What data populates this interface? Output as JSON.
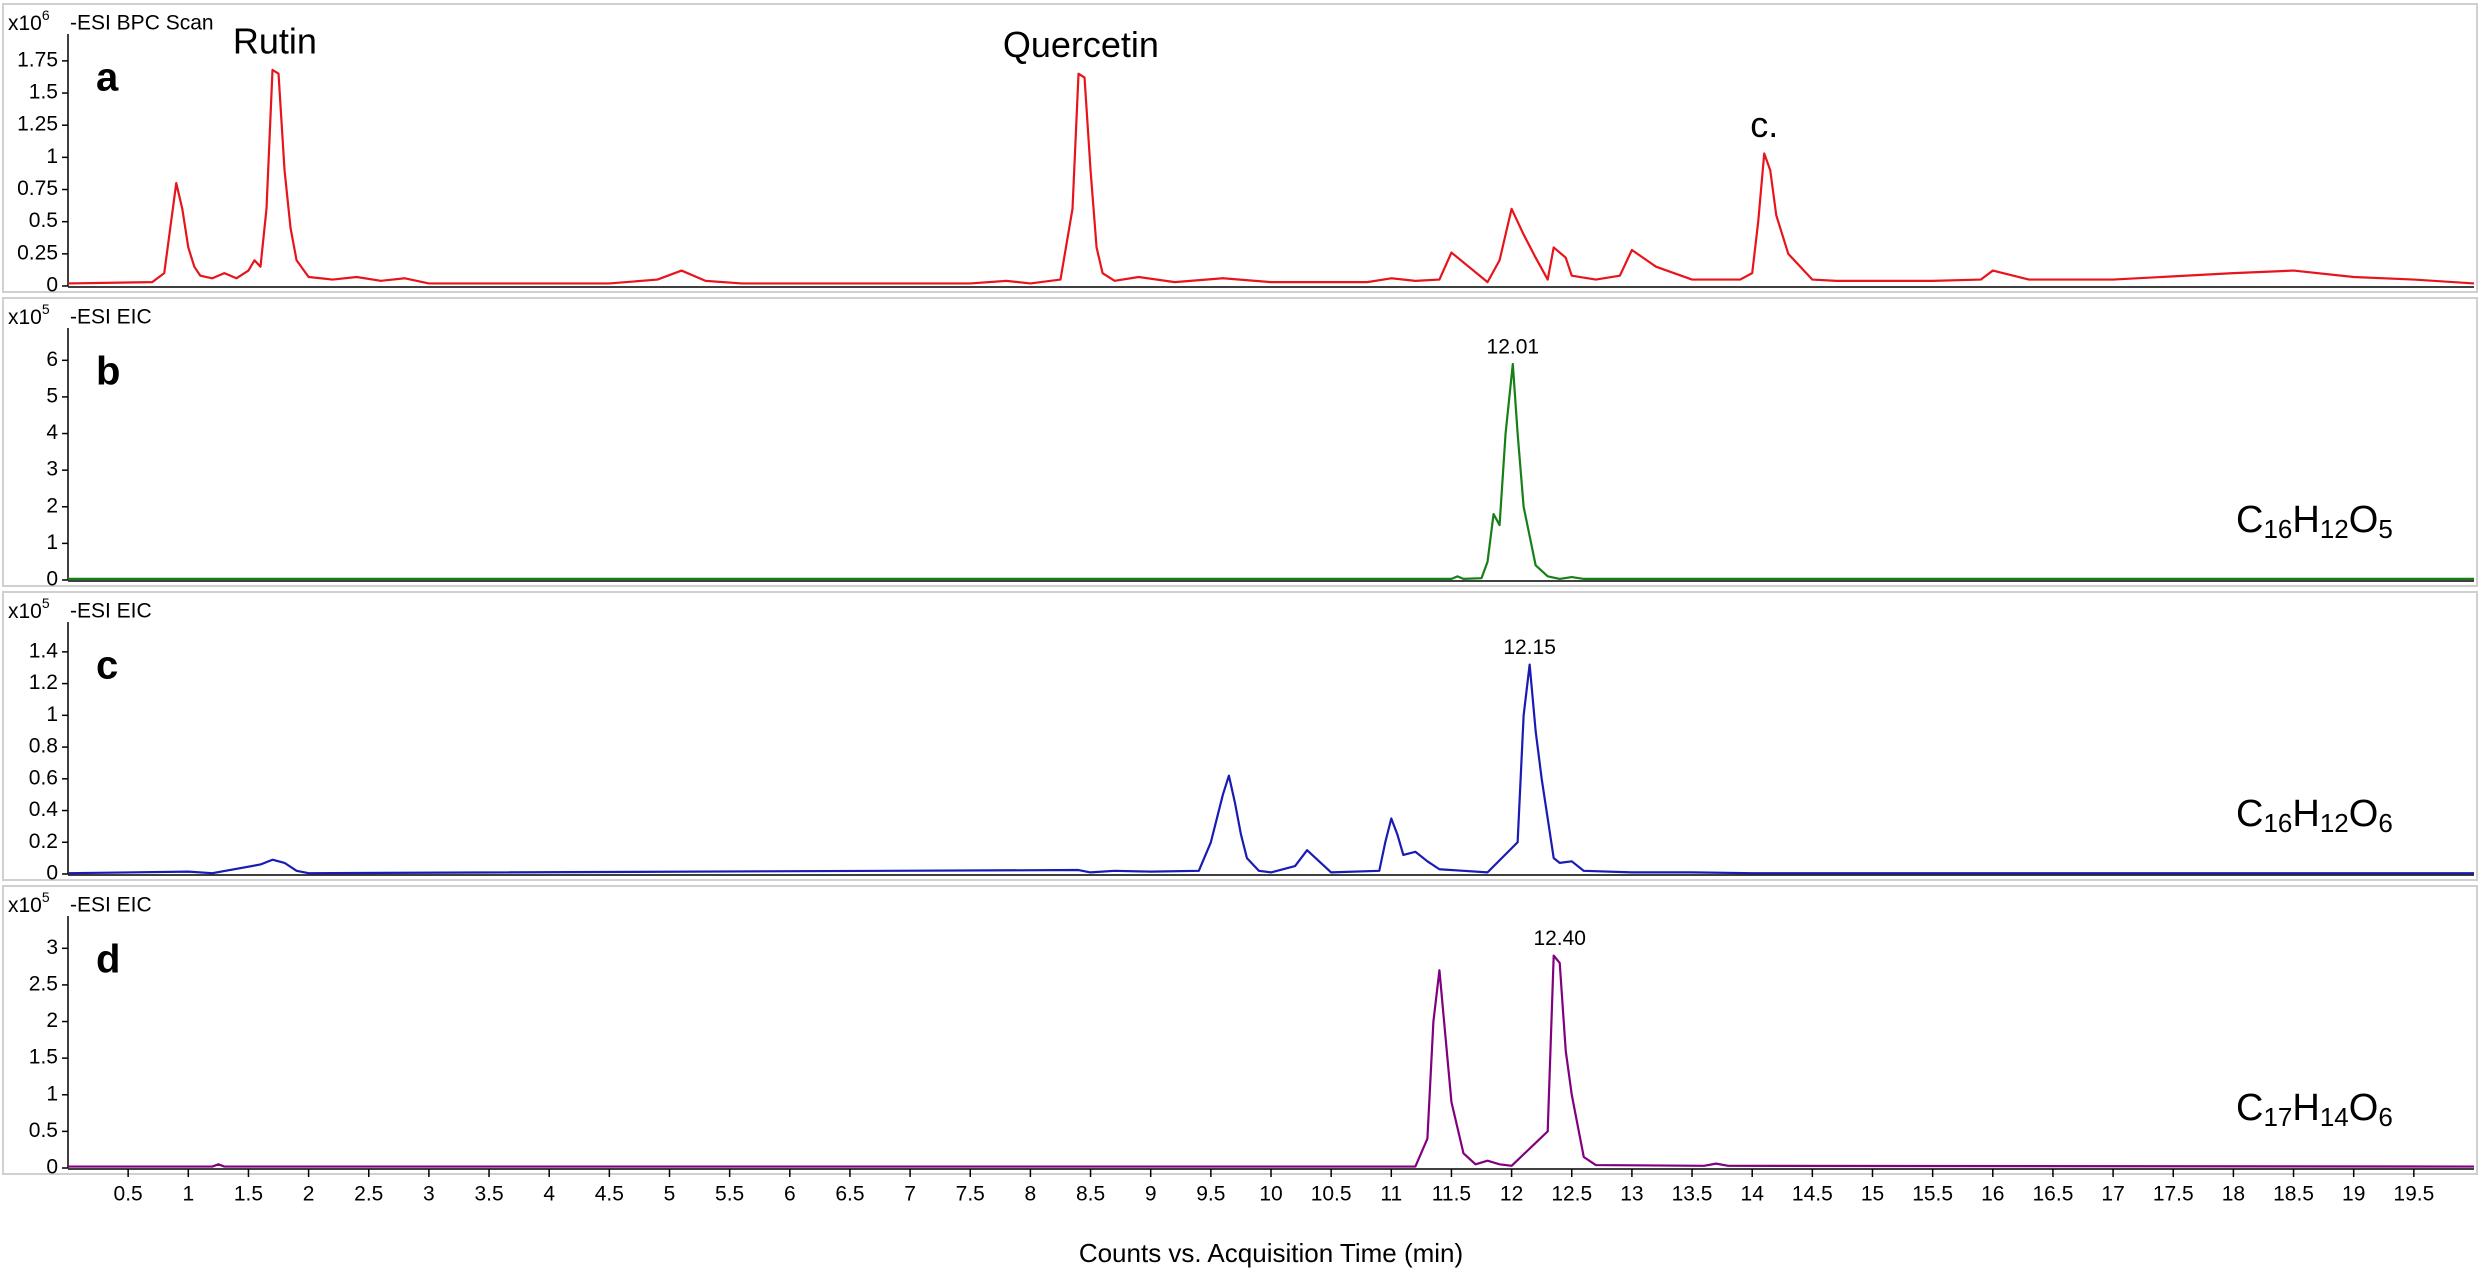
{
  "chart_data": [
    {
      "type": "line",
      "panel": "a",
      "scan": "-ESI BPC Scan",
      "scale": {
        "base": "x10",
        "exponent": "6"
      },
      "color": "#e8141b",
      "xlim": [
        0,
        20
      ],
      "ylim": [
        0,
        1.85
      ],
      "yticks": [
        0,
        0.25,
        0.5,
        0.75,
        1,
        1.25,
        1.5,
        1.75
      ],
      "x": [
        0,
        0.7,
        0.8,
        0.85,
        0.9,
        0.95,
        1.0,
        1.05,
        1.1,
        1.2,
        1.3,
        1.4,
        1.5,
        1.55,
        1.6,
        1.65,
        1.7,
        1.75,
        1.8,
        1.85,
        1.9,
        2.0,
        2.1,
        2.2,
        2.4,
        2.6,
        2.8,
        3.0,
        3.5,
        4.5,
        4.9,
        5.1,
        5.3,
        5.6,
        6,
        7,
        7.5,
        7.8,
        8.0,
        8.25,
        8.35,
        8.4,
        8.45,
        8.5,
        8.55,
        8.6,
        8.7,
        8.9,
        9.2,
        9.6,
        10,
        10.8,
        11.0,
        11.2,
        11.4,
        11.5,
        11.8,
        11.9,
        12.0,
        12.1,
        12.2,
        12.3,
        12.35,
        12.45,
        12.5,
        12.7,
        12.9,
        13.0,
        13.2,
        13.5,
        13.9,
        14.0,
        14.05,
        14.1,
        14.15,
        14.2,
        14.3,
        14.5,
        14.7,
        15,
        15.5,
        15.9,
        16.0,
        16.3,
        17,
        18,
        18.5,
        19,
        19.5,
        20
      ],
      "values": [
        0.02,
        0.03,
        0.1,
        0.45,
        0.8,
        0.6,
        0.3,
        0.15,
        0.08,
        0.06,
        0.1,
        0.06,
        0.12,
        0.2,
        0.15,
        0.6,
        1.68,
        1.65,
        0.9,
        0.45,
        0.2,
        0.07,
        0.06,
        0.05,
        0.07,
        0.04,
        0.06,
        0.02,
        0.02,
        0.02,
        0.05,
        0.12,
        0.04,
        0.02,
        0.02,
        0.02,
        0.02,
        0.04,
        0.02,
        0.05,
        0.6,
        1.65,
        1.62,
        0.9,
        0.3,
        0.1,
        0.04,
        0.07,
        0.03,
        0.06,
        0.03,
        0.03,
        0.06,
        0.04,
        0.05,
        0.26,
        0.03,
        0.2,
        0.6,
        0.4,
        0.22,
        0.05,
        0.3,
        0.22,
        0.08,
        0.05,
        0.08,
        0.28,
        0.15,
        0.05,
        0.05,
        0.1,
        0.5,
        1.03,
        0.9,
        0.55,
        0.25,
        0.05,
        0.04,
        0.04,
        0.04,
        0.05,
        0.12,
        0.05,
        0.05,
        0.1,
        0.12,
        0.07,
        0.05,
        0.02
      ],
      "annotation_color": "#000000",
      "annotations": [
        {
          "text": "Rutin",
          "x": 1.72,
          "y": 1.68
        },
        {
          "text": "Quercetin",
          "x": 8.42,
          "y": 1.65
        },
        {
          "text": "c.",
          "x": 14.1,
          "y": 1.03
        }
      ]
    },
    {
      "type": "line",
      "panel": "b",
      "scan": "-ESI EIC",
      "scale": {
        "base": "x10",
        "exponent": "5"
      },
      "color": "#168016",
      "xlim": [
        0,
        20
      ],
      "ylim": [
        0,
        6.5
      ],
      "yticks": [
        0,
        1,
        2,
        3,
        4,
        5,
        6
      ],
      "x": [
        0,
        11.5,
        11.55,
        11.6,
        11.75,
        11.8,
        11.85,
        11.9,
        11.95,
        12.01,
        12.05,
        12.1,
        12.15,
        12.2,
        12.3,
        12.4,
        12.5,
        12.6,
        20
      ],
      "values": [
        0.03,
        0.03,
        0.1,
        0.03,
        0.05,
        0.5,
        1.8,
        1.5,
        4.0,
        5.9,
        4.0,
        2.0,
        1.2,
        0.4,
        0.1,
        0.03,
        0.08,
        0.03,
        0.03
      ],
      "annotation_color": "#168016",
      "annotations": [
        {
          "text": "12.01",
          "x": 12.01,
          "y": 5.9
        }
      ],
      "formula": [
        {
          "text": "C",
          "sub": "16"
        },
        {
          "text": "H",
          "sub": "12"
        },
        {
          "text": "O",
          "sub": "5"
        }
      ]
    },
    {
      "type": "line",
      "panel": "c",
      "scan": "-ESI EIC",
      "scale": {
        "base": "x10",
        "exponent": "5"
      },
      "color": "#1a1ab4",
      "xlim": [
        0,
        20
      ],
      "ylim": [
        0,
        1.5
      ],
      "yticks": [
        0,
        0.2,
        0.4,
        0.6,
        0.8,
        1,
        1.2,
        1.4
      ],
      "x": [
        0,
        1.0,
        1.2,
        1.6,
        1.7,
        1.8,
        1.9,
        2.0,
        8.4,
        8.5,
        8.7,
        9.0,
        9.4,
        9.5,
        9.6,
        9.65,
        9.7,
        9.75,
        9.8,
        9.9,
        10.0,
        10.2,
        10.3,
        10.4,
        10.5,
        10.9,
        10.95,
        11.0,
        11.05,
        11.1,
        11.2,
        11.3,
        11.4,
        11.6,
        11.8,
        12.05,
        12.1,
        12.15,
        12.2,
        12.25,
        12.3,
        12.35,
        12.4,
        12.5,
        12.6,
        13.0,
        13.5,
        14,
        20
      ],
      "values": [
        0.005,
        0.015,
        0.005,
        0.06,
        0.09,
        0.07,
        0.02,
        0.005,
        0.025,
        0.01,
        0.02,
        0.015,
        0.02,
        0.2,
        0.5,
        0.62,
        0.45,
        0.25,
        0.1,
        0.02,
        0.01,
        0.05,
        0.15,
        0.08,
        0.01,
        0.02,
        0.2,
        0.35,
        0.25,
        0.12,
        0.14,
        0.08,
        0.03,
        0.02,
        0.01,
        0.2,
        1.0,
        1.32,
        0.9,
        0.6,
        0.35,
        0.1,
        0.07,
        0.08,
        0.02,
        0.01,
        0.01,
        0.005,
        0.005
      ],
      "annotation_color": "#1a1ab4",
      "annotations": [
        {
          "text": "12.15",
          "x": 12.15,
          "y": 1.32
        }
      ],
      "formula": [
        {
          "text": "C",
          "sub": "16"
        },
        {
          "text": "H",
          "sub": "12"
        },
        {
          "text": "O",
          "sub": "6"
        }
      ]
    },
    {
      "type": "line",
      "panel": "d",
      "scan": "-ESI EIC",
      "scale": {
        "base": "x10",
        "exponent": "5"
      },
      "color": "#800080",
      "xlim": [
        0,
        20
      ],
      "ylim": [
        0,
        3.25
      ],
      "yticks": [
        0,
        0.5,
        1,
        1.5,
        2,
        2.5,
        3
      ],
      "x": [
        0,
        1.2,
        1.25,
        1.3,
        11.2,
        11.3,
        11.35,
        11.4,
        11.45,
        11.5,
        11.6,
        11.7,
        11.8,
        11.9,
        12.0,
        12.3,
        12.35,
        12.4,
        12.45,
        12.5,
        12.6,
        12.7,
        13.6,
        13.7,
        13.8,
        20
      ],
      "values": [
        0.02,
        0.02,
        0.05,
        0.02,
        0.02,
        0.4,
        2.0,
        2.7,
        1.8,
        0.9,
        0.2,
        0.05,
        0.1,
        0.05,
        0.03,
        0.5,
        2.9,
        2.8,
        1.6,
        1.0,
        0.15,
        0.04,
        0.03,
        0.06,
        0.03,
        0.02
      ],
      "annotation_color": "#800080",
      "annotations": [
        {
          "text": "12.40",
          "x": 12.4,
          "y": 2.9
        }
      ],
      "formula": [
        {
          "text": "C",
          "sub": "17"
        },
        {
          "text": "H",
          "sub": "14"
        },
        {
          "text": "O",
          "sub": "6"
        }
      ],
      "xticks": [
        0.5,
        1,
        1.5,
        2,
        2.5,
        3,
        3.5,
        4,
        4.5,
        5,
        5.5,
        6,
        6.5,
        7,
        7.5,
        8,
        8.5,
        9,
        9.5,
        10,
        10.5,
        11,
        11.5,
        12,
        12.5,
        13,
        13.5,
        14,
        14.5,
        15,
        15.5,
        16,
        16.5,
        17,
        17.5,
        18,
        18.5,
        19,
        19.5
      ],
      "xlabel": "Counts vs. Acquisition Time (min)"
    }
  ]
}
